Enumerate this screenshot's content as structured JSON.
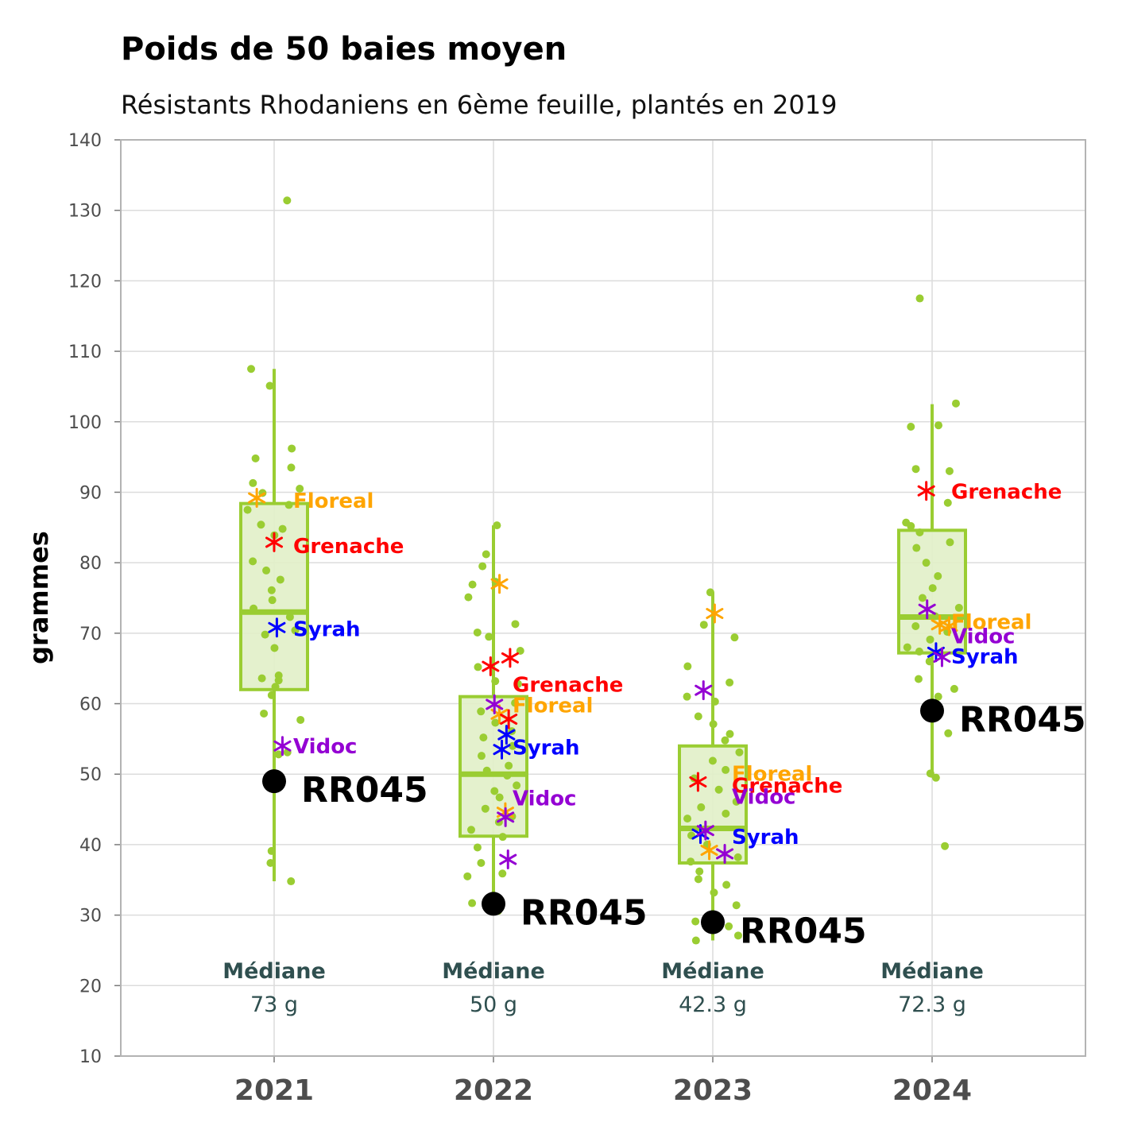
{
  "chart_data": {
    "type": "box",
    "title": "Poids de 50 baies moyen",
    "subtitle": "Résistants Rhodaniens en 6ème feuille, plantés en 2019",
    "ylabel": "grammes",
    "xlabel": "",
    "ylim": [
      10,
      140
    ],
    "yticks": [
      10,
      20,
      30,
      40,
      50,
      60,
      70,
      80,
      90,
      100,
      110,
      120,
      130,
      140
    ],
    "grid": true,
    "categories": [
      "2021",
      "2022",
      "2023",
      "2024"
    ],
    "colors": {
      "box": "#9acd32",
      "box_fill": "#e1f0c8",
      "points": "#9acd32",
      "Floreal": "#ffa500",
      "Grenache": "#ff0000",
      "Syrah": "#0000ff",
      "Vidoc": "#9400d3",
      "reference": "#000000",
      "median_text": "#2f4f4f"
    },
    "boxes": [
      {
        "year": "2021",
        "whisker_low": 34.8,
        "q1": 62,
        "median": 73,
        "q3": 88.4,
        "whisker_high": 107.5
      },
      {
        "year": "2022",
        "whisker_low": 30.6,
        "q1": 41.2,
        "median": 50,
        "q3": 61,
        "whisker_high": 85.3
      },
      {
        "year": "2023",
        "whisker_low": 26.4,
        "q1": 37.4,
        "median": 42.3,
        "q3": 54,
        "whisker_high": 75.8
      },
      {
        "year": "2024",
        "whisker_low": 49.5,
        "q1": 67.2,
        "median": 72.3,
        "q3": 84.6,
        "whisker_high": 102.5
      }
    ],
    "median_label": "Médiane",
    "median_values": [
      "73 g",
      "50 g",
      "42.3 g",
      "72.3 g"
    ],
    "jitter_points": [
      [
        131.4,
        107.5,
        105.1,
        96.2,
        94.8,
        93.5,
        91.3,
        90.5,
        89.9,
        88.2,
        87.5,
        85.4,
        84.8,
        83.9,
        80.2,
        78.9,
        77.6,
        76.1,
        74.7,
        73.5,
        72.3,
        70.4,
        69.8,
        67.9,
        64.0,
        63.6,
        63.3,
        62.4,
        61.2,
        58.6,
        57.7,
        53.1,
        52.8,
        39.1,
        37.4,
        34.8
      ],
      [
        85.3,
        81.2,
        79.5,
        77.3,
        76.9,
        75.1,
        71.3,
        70.1,
        69.5,
        67.5,
        65.2,
        63.2,
        62.8,
        60.1,
        58.9,
        57.3,
        56.1,
        55.2,
        54.0,
        52.6,
        51.2,
        50.5,
        49.8,
        48.4,
        47.6,
        46.7,
        45.1,
        44.0,
        43.2,
        42.1,
        41.1,
        39.6,
        37.4,
        35.9,
        35.5,
        32.6,
        31.7,
        30.6
      ],
      [
        75.8,
        71.2,
        69.4,
        65.3,
        63.0,
        61.0,
        60.3,
        58.2,
        57.1,
        55.7,
        54.8,
        53.1,
        51.9,
        50.6,
        49.4,
        47.8,
        46.1,
        45.3,
        44.4,
        43.7,
        41.3,
        40.0,
        38.2,
        37.6,
        36.2,
        35.1,
        34.3,
        33.2,
        31.4,
        29.1,
        28.4,
        27.1,
        26.4
      ],
      [
        117.5,
        102.6,
        99.5,
        99.3,
        93.3,
        93.0,
        88.5,
        85.7,
        85.2,
        84.3,
        82.9,
        82.1,
        80.0,
        78.1,
        76.4,
        75.0,
        73.6,
        72.4,
        71.0,
        70.2,
        69.1,
        68.0,
        67.4,
        66.0,
        63.5,
        62.1,
        61.0,
        57.9,
        55.8,
        50.1,
        49.5,
        39.8
      ]
    ],
    "varieties": [
      {
        "name": "Floreal",
        "points": [
          [
            0,
            89.2
          ],
          [
            1,
            77.0
          ],
          [
            1,
            58.5
          ],
          [
            1,
            44.6
          ],
          [
            2,
            72.8
          ],
          [
            2,
            39.2
          ],
          [
            3,
            71.2
          ],
          [
            3,
            71.0
          ]
        ]
      },
      {
        "name": "Grenache",
        "points": [
          [
            0,
            82.9
          ],
          [
            1,
            66.5
          ],
          [
            1,
            65.3
          ],
          [
            1,
            57.8
          ],
          [
            2,
            48.9
          ],
          [
            3,
            90.2
          ]
        ]
      },
      {
        "name": "Syrah",
        "points": [
          [
            0,
            70.8
          ],
          [
            1,
            55.6
          ],
          [
            1,
            53.5
          ],
          [
            2,
            41.5
          ],
          [
            3,
            67.3
          ]
        ]
      },
      {
        "name": "Vidoc",
        "points": [
          [
            0,
            54.0
          ],
          [
            1,
            59.9
          ],
          [
            1,
            43.9
          ],
          [
            1,
            37.9
          ],
          [
            2,
            61.9
          ],
          [
            2,
            42.0
          ],
          [
            2,
            38.7
          ],
          [
            3,
            73.4
          ],
          [
            3,
            66.6
          ]
        ]
      }
    ],
    "variety_labels": [
      {
        "name": "Floreal",
        "year_index": 0,
        "y": 88.8
      },
      {
        "name": "Grenache",
        "year_index": 0,
        "y": 82.4
      },
      {
        "name": "Syrah",
        "year_index": 0,
        "y": 70.6
      },
      {
        "name": "Vidoc",
        "year_index": 0,
        "y": 54.0
      },
      {
        "name": "Grenache",
        "year_index": 1,
        "y": 62.7
      },
      {
        "name": "Floreal",
        "year_index": 1,
        "y": 59.8
      },
      {
        "name": "Syrah",
        "year_index": 1,
        "y": 53.8
      },
      {
        "name": "Vidoc",
        "year_index": 1,
        "y": 46.6
      },
      {
        "name": "Floreal",
        "year_index": 2,
        "y": 50.1
      },
      {
        "name": "Grenache",
        "year_index": 2,
        "y": 48.4
      },
      {
        "name": "Vidoc",
        "year_index": 2,
        "y": 46.8
      },
      {
        "name": "Syrah",
        "year_index": 2,
        "y": 41.1
      },
      {
        "name": "Grenache",
        "year_index": 3,
        "y": 90.1
      },
      {
        "name": "Floreal",
        "year_index": 3,
        "y": 71.6
      },
      {
        "name": "Vidoc",
        "year_index": 3,
        "y": 69.6
      },
      {
        "name": "Syrah",
        "year_index": 3,
        "y": 66.7
      }
    ],
    "reference": {
      "name": "RR045",
      "values": [
        49.0,
        31.6,
        29.0,
        59.0
      ]
    }
  }
}
